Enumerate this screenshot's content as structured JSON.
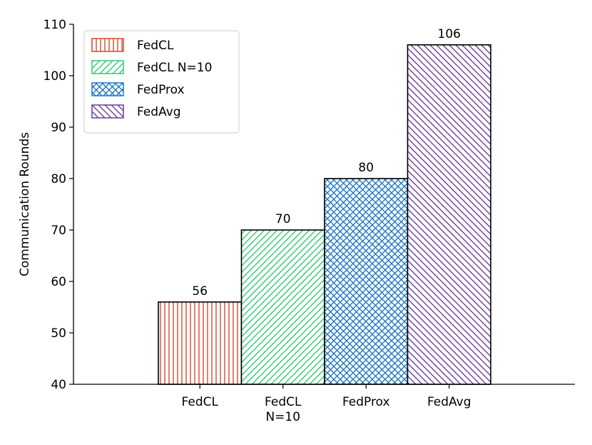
{
  "chart_data": {
    "type": "bar",
    "title": "",
    "xlabel": "",
    "ylabel": "Communication Rounds",
    "ylim": [
      40,
      110
    ],
    "yticks": [
      40,
      50,
      60,
      70,
      80,
      90,
      100,
      110
    ],
    "grid": false,
    "legend_position": "top-left",
    "categories": [
      {
        "label_lines": [
          "FedCL"
        ],
        "legend": "FedCL",
        "value": 56,
        "color": "#d9492b",
        "pattern": "vertical-lines"
      },
      {
        "label_lines": [
          "FedCL",
          "N=10"
        ],
        "legend": "FedCL N=10",
        "value": 70,
        "color": "#2ecc71",
        "pattern": "diagonal-lines"
      },
      {
        "label_lines": [
          "FedProx"
        ],
        "legend": "FedProx",
        "value": 80,
        "color": "#1f77c4",
        "pattern": "crosshatch"
      },
      {
        "label_lines": [
          "FedAvg"
        ],
        "legend": "FedAvg",
        "value": 106,
        "color": "#6a3d9a",
        "pattern": "back-diagonal-lines"
      }
    ]
  }
}
